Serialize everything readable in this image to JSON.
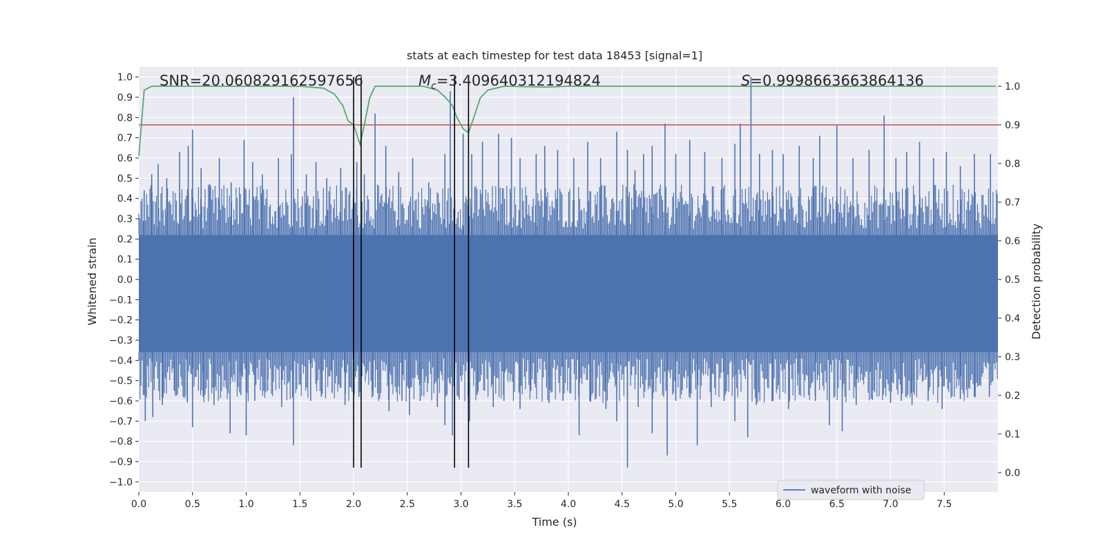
{
  "chart_data": {
    "type": "line",
    "title": "stats at each timestep for test data 18453 [signal=1]",
    "xlabel": "Time (s)",
    "ylabel": "Whitened strain",
    "y2label": "Detection probability",
    "xlim": [
      0.0,
      8.0
    ],
    "ylim": [
      -1.05,
      1.05
    ],
    "y2lim": [
      -0.05,
      1.05
    ],
    "xticks": [
      0.0,
      0.5,
      1.0,
      1.5,
      2.0,
      2.5,
      3.0,
      3.5,
      4.0,
      4.5,
      5.0,
      5.5,
      6.0,
      6.5,
      7.0,
      7.5
    ],
    "xtick_labels": [
      "0.0",
      "0.5",
      "1.0",
      "1.5",
      "2.0",
      "2.5",
      "3.0",
      "3.5",
      "4.0",
      "4.5",
      "5.0",
      "5.5",
      "6.0",
      "6.5",
      "7.0",
      "7.5"
    ],
    "yticks": [
      1.0,
      0.9,
      0.8,
      0.7,
      0.6,
      0.5,
      0.4,
      0.3,
      0.2,
      0.1,
      0.0,
      -0.1,
      -0.2,
      -0.3,
      -0.4,
      -0.5,
      -0.6,
      -0.7,
      -0.8,
      -0.9,
      -1.0
    ],
    "ytick_labels": [
      "1.0",
      "0.9",
      "0.8",
      "0.7",
      "0.6",
      "0.5",
      "0.4",
      "0.3",
      "0.2",
      "0.1",
      "0.0",
      "−0.1",
      "−0.2",
      "−0.3",
      "−0.4",
      "−0.5",
      "−0.6",
      "−0.7",
      "−0.8",
      "−0.9",
      "−1.0"
    ],
    "y2ticks": [
      1.0,
      0.9,
      0.8,
      0.7,
      0.6,
      0.5,
      0.4,
      0.3,
      0.2,
      0.1,
      0.0
    ],
    "y2tick_labels": [
      "1.0",
      "0.9",
      "0.8",
      "0.7",
      "0.6",
      "0.5",
      "0.4",
      "0.3",
      "0.2",
      "0.1",
      "0.0"
    ],
    "grid": true,
    "legend": {
      "label": "waveform with noise",
      "position": "lower-right"
    },
    "annotations": {
      "snr": "SNR=20.060829162597656",
      "mc_prefix": "M",
      "mc_sub": "c",
      "mc_value": "=3.409640312194824",
      "s_prefix": "S",
      "s_value": "=0.9998663663864136"
    },
    "threshold": {
      "value": 0.9,
      "axis": "y2",
      "color": "#c44e52"
    },
    "vertical_markers": [
      {
        "x": 2.0,
        "y_from": -0.93,
        "y_to": 1.0
      },
      {
        "x": 2.07,
        "y_from": -0.93,
        "y_to": 1.0
      },
      {
        "x": 2.94,
        "y_from": -0.93,
        "y_to": 1.0
      },
      {
        "x": 3.07,
        "y_from": -0.93,
        "y_to": 1.0
      }
    ],
    "series": [
      {
        "name": "waveform with noise",
        "axis": "y",
        "color": "#4c72b0",
        "band": [
          -0.36,
          0.22
        ],
        "spikes": [
          {
            "x": 0.05,
            "y": 0.44
          },
          {
            "x": 0.12,
            "y": 0.52
          },
          {
            "x": 0.18,
            "y": 0.57
          },
          {
            "x": 0.26,
            "y": 0.5
          },
          {
            "x": 0.38,
            "y": 0.63
          },
          {
            "x": 0.46,
            "y": 0.66
          },
          {
            "x": 0.5,
            "y": 0.74
          },
          {
            "x": 0.58,
            "y": 0.55
          },
          {
            "x": 0.66,
            "y": 0.47
          },
          {
            "x": 0.75,
            "y": 0.6
          },
          {
            "x": 0.86,
            "y": 0.48
          },
          {
            "x": 0.98,
            "y": 0.69
          },
          {
            "x": 1.06,
            "y": 0.58
          },
          {
            "x": 1.15,
            "y": 0.52
          },
          {
            "x": 1.3,
            "y": 0.6
          },
          {
            "x": 1.42,
            "y": 0.62
          },
          {
            "x": 1.44,
            "y": 0.9
          },
          {
            "x": 1.56,
            "y": 0.52
          },
          {
            "x": 1.65,
            "y": 0.58
          },
          {
            "x": 1.75,
            "y": 0.5
          },
          {
            "x": 1.88,
            "y": 0.55
          },
          {
            "x": 2.03,
            "y": 0.58
          },
          {
            "x": 2.1,
            "y": 0.52
          },
          {
            "x": 2.2,
            "y": 0.82
          },
          {
            "x": 2.3,
            "y": 0.66
          },
          {
            "x": 2.42,
            "y": 0.53
          },
          {
            "x": 2.55,
            "y": 0.6
          },
          {
            "x": 2.7,
            "y": 0.48
          },
          {
            "x": 2.85,
            "y": 0.62
          },
          {
            "x": 2.9,
            "y": 0.93
          },
          {
            "x": 3.02,
            "y": 0.72
          },
          {
            "x": 3.1,
            "y": 0.62
          },
          {
            "x": 3.2,
            "y": 0.68
          },
          {
            "x": 3.35,
            "y": 0.72
          },
          {
            "x": 3.47,
            "y": 0.7
          },
          {
            "x": 3.55,
            "y": 0.6
          },
          {
            "x": 3.7,
            "y": 0.62
          },
          {
            "x": 3.78,
            "y": 0.66
          },
          {
            "x": 3.9,
            "y": 0.64
          },
          {
            "x": 4.05,
            "y": 0.6
          },
          {
            "x": 4.18,
            "y": 0.68
          },
          {
            "x": 4.3,
            "y": 0.6
          },
          {
            "x": 4.45,
            "y": 0.73
          },
          {
            "x": 4.55,
            "y": 0.64
          },
          {
            "x": 4.62,
            "y": 0.54
          },
          {
            "x": 4.7,
            "y": 0.62
          },
          {
            "x": 4.78,
            "y": 0.66
          },
          {
            "x": 4.9,
            "y": 0.77
          },
          {
            "x": 5.0,
            "y": 0.62
          },
          {
            "x": 5.13,
            "y": 0.69
          },
          {
            "x": 5.27,
            "y": 0.63
          },
          {
            "x": 5.43,
            "y": 0.6
          },
          {
            "x": 5.55,
            "y": 0.67
          },
          {
            "x": 5.6,
            "y": 0.77
          },
          {
            "x": 5.7,
            "y": 1.0
          },
          {
            "x": 5.78,
            "y": 0.62
          },
          {
            "x": 5.9,
            "y": 0.64
          },
          {
            "x": 6.0,
            "y": 0.62
          },
          {
            "x": 6.15,
            "y": 0.66
          },
          {
            "x": 6.28,
            "y": 0.6
          },
          {
            "x": 6.34,
            "y": 0.71
          },
          {
            "x": 6.5,
            "y": 0.76
          },
          {
            "x": 6.65,
            "y": 0.6
          },
          {
            "x": 6.8,
            "y": 0.64
          },
          {
            "x": 6.94,
            "y": 0.81
          },
          {
            "x": 7.05,
            "y": 0.6
          },
          {
            "x": 7.15,
            "y": 0.63
          },
          {
            "x": 7.27,
            "y": 0.68
          },
          {
            "x": 7.4,
            "y": 0.6
          },
          {
            "x": 7.52,
            "y": 0.63
          },
          {
            "x": 7.65,
            "y": 0.56
          },
          {
            "x": 7.78,
            "y": 0.62
          },
          {
            "x": 7.93,
            "y": 0.62
          },
          {
            "x": 0.06,
            "y": -0.7
          },
          {
            "x": 0.13,
            "y": -0.68
          },
          {
            "x": 0.22,
            "y": -0.62
          },
          {
            "x": 0.33,
            "y": -0.55
          },
          {
            "x": 0.45,
            "y": -0.6
          },
          {
            "x": 0.5,
            "y": -0.73
          },
          {
            "x": 0.6,
            "y": -0.58
          },
          {
            "x": 0.7,
            "y": -0.62
          },
          {
            "x": 0.85,
            "y": -0.76
          },
          {
            "x": 0.95,
            "y": -0.57
          },
          {
            "x": 1.0,
            "y": -0.77
          },
          {
            "x": 1.08,
            "y": -0.6
          },
          {
            "x": 1.2,
            "y": -0.55
          },
          {
            "x": 1.33,
            "y": -0.63
          },
          {
            "x": 1.44,
            "y": -0.82
          },
          {
            "x": 1.6,
            "y": -0.6
          },
          {
            "x": 1.7,
            "y": -0.58
          },
          {
            "x": 1.8,
            "y": -0.56
          },
          {
            "x": 1.92,
            "y": -0.62
          },
          {
            "x": 2.05,
            "y": -0.58
          },
          {
            "x": 2.18,
            "y": -0.55
          },
          {
            "x": 2.33,
            "y": -0.65
          },
          {
            "x": 2.45,
            "y": -0.6
          },
          {
            "x": 2.52,
            "y": -0.67
          },
          {
            "x": 2.62,
            "y": -0.6
          },
          {
            "x": 2.78,
            "y": -0.63
          },
          {
            "x": 2.85,
            "y": -0.72
          },
          {
            "x": 2.92,
            "y": -0.77
          },
          {
            "x": 3.08,
            "y": -0.7
          },
          {
            "x": 3.15,
            "y": -0.57
          },
          {
            "x": 3.3,
            "y": -0.63
          },
          {
            "x": 3.4,
            "y": -0.6
          },
          {
            "x": 3.55,
            "y": -0.64
          },
          {
            "x": 3.65,
            "y": -0.55
          },
          {
            "x": 3.82,
            "y": -0.61
          },
          {
            "x": 3.95,
            "y": -0.6
          },
          {
            "x": 4.1,
            "y": -0.77
          },
          {
            "x": 4.2,
            "y": -0.6
          },
          {
            "x": 4.35,
            "y": -0.64
          },
          {
            "x": 4.45,
            "y": -0.7
          },
          {
            "x": 4.55,
            "y": -0.93
          },
          {
            "x": 4.65,
            "y": -0.63
          },
          {
            "x": 4.78,
            "y": -0.76
          },
          {
            "x": 4.92,
            "y": -0.87
          },
          {
            "x": 5.0,
            "y": -0.6
          },
          {
            "x": 5.13,
            "y": -0.56
          },
          {
            "x": 5.2,
            "y": -0.82
          },
          {
            "x": 5.33,
            "y": -0.63
          },
          {
            "x": 5.45,
            "y": -0.6
          },
          {
            "x": 5.55,
            "y": -0.7
          },
          {
            "x": 5.67,
            "y": -0.78
          },
          {
            "x": 5.75,
            "y": -0.62
          },
          {
            "x": 5.9,
            "y": -0.6
          },
          {
            "x": 6.05,
            "y": -0.64
          },
          {
            "x": 6.15,
            "y": -0.57
          },
          {
            "x": 6.3,
            "y": -0.6
          },
          {
            "x": 6.43,
            "y": -0.72
          },
          {
            "x": 6.55,
            "y": -0.75
          },
          {
            "x": 6.68,
            "y": -0.62
          },
          {
            "x": 6.82,
            "y": -0.59
          },
          {
            "x": 7.0,
            "y": -0.61
          },
          {
            "x": 7.1,
            "y": -0.6
          },
          {
            "x": 7.2,
            "y": -0.62
          },
          {
            "x": 7.35,
            "y": -0.6
          },
          {
            "x": 7.48,
            "y": -0.64
          },
          {
            "x": 7.65,
            "y": -0.59
          },
          {
            "x": 7.78,
            "y": -0.58
          },
          {
            "x": 7.92,
            "y": -0.58
          }
        ]
      },
      {
        "name": "detection probability",
        "axis": "y2",
        "color": "#55a868",
        "x": [
          0.0,
          0.05,
          0.12,
          0.3,
          1.5,
          1.72,
          1.82,
          1.9,
          1.95,
          2.0,
          2.06,
          2.1,
          2.15,
          2.2,
          2.5,
          2.65,
          2.78,
          2.86,
          2.92,
          2.96,
          3.02,
          3.07,
          3.12,
          3.18,
          3.25,
          3.4,
          3.8,
          4.0,
          7.98
        ],
        "y": [
          0.82,
          0.99,
          1.0,
          1.0,
          1.0,
          0.995,
          0.98,
          0.95,
          0.91,
          0.9,
          0.85,
          0.9,
          0.97,
          1.0,
          1.0,
          1.0,
          0.99,
          0.97,
          0.95,
          0.92,
          0.89,
          0.88,
          0.92,
          0.97,
          0.99,
          1.0,
          0.998,
          1.0,
          1.0
        ]
      }
    ]
  }
}
